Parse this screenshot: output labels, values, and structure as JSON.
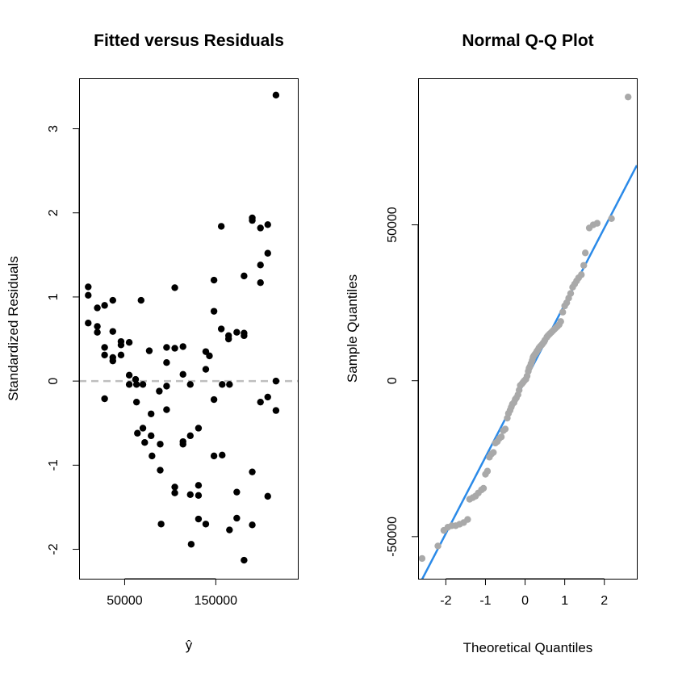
{
  "chart_data": [
    {
      "type": "scatter",
      "title": "Fitted versus Residuals",
      "xlabel": "ŷ",
      "ylabel": "Standardized Residuals",
      "xlim": [
        0,
        240000
      ],
      "ylim": [
        -2.35,
        3.6
      ],
      "xticks": [
        50000,
        150000
      ],
      "xtick_labels": [
        "50000",
        "150000"
      ],
      "yticks": [
        -2,
        -1,
        0,
        1,
        2,
        3
      ],
      "ytick_labels": [
        "-2",
        "-1",
        "0",
        "1",
        "2",
        "3"
      ],
      "point_color": "#000000",
      "reference_line": {
        "y": 0,
        "style": "dashed",
        "color": "#bebebe"
      },
      "grid": false,
      "series": [
        {
          "points": [
            [
              10000,
              1.12
            ],
            [
              10000,
              1.02
            ],
            [
              10000,
              0.69
            ],
            [
              20000,
              0.87
            ],
            [
              20000,
              0.65
            ],
            [
              20000,
              0.58
            ],
            [
              28000,
              0.9
            ],
            [
              28000,
              0.4
            ],
            [
              28000,
              0.31
            ],
            [
              28000,
              -0.21
            ],
            [
              37000,
              0.96
            ],
            [
              37000,
              0.59
            ],
            [
              37000,
              0.28
            ],
            [
              37000,
              0.24
            ],
            [
              46000,
              0.47
            ],
            [
              46000,
              0.43
            ],
            [
              46000,
              0.31
            ],
            [
              55000,
              0.46
            ],
            [
              55000,
              0.07
            ],
            [
              55000,
              -0.04
            ],
            [
              62000,
              0.02
            ],
            [
              63000,
              -0.04
            ],
            [
              63000,
              -0.25
            ],
            [
              64000,
              -0.62
            ],
            [
              68000,
              0.96
            ],
            [
              70000,
              -0.04
            ],
            [
              70000,
              -0.56
            ],
            [
              72000,
              -0.73
            ],
            [
              77000,
              0.36
            ],
            [
              79000,
              -0.39
            ],
            [
              79000,
              -0.65
            ],
            [
              80000,
              -0.89
            ],
            [
              88000,
              -0.12
            ],
            [
              89000,
              -0.75
            ],
            [
              89000,
              -1.06
            ],
            [
              90000,
              -1.7
            ],
            [
              96000,
              0.4
            ],
            [
              96000,
              0.22
            ],
            [
              96000,
              -0.06
            ],
            [
              96000,
              -0.34
            ],
            [
              105000,
              1.11
            ],
            [
              105000,
              0.39
            ],
            [
              105000,
              -1.26
            ],
            [
              105000,
              -1.33
            ],
            [
              114000,
              0.41
            ],
            [
              114000,
              0.08
            ],
            [
              114000,
              -0.72
            ],
            [
              114000,
              -0.75
            ],
            [
              122000,
              -0.04
            ],
            [
              122000,
              -0.65
            ],
            [
              122000,
              -1.35
            ],
            [
              123000,
              -1.94
            ],
            [
              131000,
              -0.56
            ],
            [
              131000,
              -1.24
            ],
            [
              131000,
              -1.36
            ],
            [
              131000,
              -1.64
            ],
            [
              139000,
              0.35
            ],
            [
              139000,
              0.14
            ],
            [
              139000,
              -1.7
            ],
            [
              143000,
              0.3
            ],
            [
              148000,
              1.2
            ],
            [
              148000,
              0.83
            ],
            [
              148000,
              -0.22
            ],
            [
              148000,
              -0.89
            ],
            [
              156000,
              1.84
            ],
            [
              156000,
              0.62
            ],
            [
              157000,
              -0.04
            ],
            [
              157000,
              -0.88
            ],
            [
              164000,
              0.54
            ],
            [
              164000,
              0.5
            ],
            [
              165000,
              -0.04
            ],
            [
              165000,
              -1.77
            ],
            [
              173000,
              0.58
            ],
            [
              173000,
              -1.32
            ],
            [
              173000,
              -1.63
            ],
            [
              181000,
              1.25
            ],
            [
              181000,
              0.57
            ],
            [
              181000,
              0.54
            ],
            [
              181000,
              -2.13
            ],
            [
              190000,
              1.94
            ],
            [
              190000,
              1.91
            ],
            [
              190000,
              -1.08
            ],
            [
              190000,
              -1.71
            ],
            [
              199000,
              1.82
            ],
            [
              199000,
              1.38
            ],
            [
              199000,
              1.17
            ],
            [
              199000,
              -0.25
            ],
            [
              207000,
              1.86
            ],
            [
              207000,
              1.52
            ],
            [
              207000,
              -0.19
            ],
            [
              207000,
              -1.37
            ],
            [
              216000,
              3.4
            ],
            [
              216000,
              0.0
            ],
            [
              216000,
              -0.35
            ]
          ]
        }
      ]
    },
    {
      "type": "scatter",
      "title": "Normal Q-Q Plot",
      "xlabel": "Theoretical Quantiles",
      "ylabel": "Sample Quantiles",
      "xlim": [
        -2.7,
        2.82
      ],
      "ylim": [
        -63500,
        97000
      ],
      "xticks": [
        -2,
        -1,
        0,
        1,
        2
      ],
      "xtick_labels": [
        "-2",
        "-1",
        "0",
        "1",
        "2"
      ],
      "yticks": [
        -50000,
        0,
        50000
      ],
      "ytick_labels": [
        "-50000",
        "0",
        "50000"
      ],
      "point_color": "#a9a9a9",
      "reference_line": {
        "type": "abline",
        "intercept": 0,
        "slope": 24500,
        "color": "#2b8ae8"
      },
      "grid": false,
      "series": [
        {
          "points": [
            [
              -2.6,
              -57000
            ],
            [
              -2.2,
              -53000
            ],
            [
              -2.05,
              -48000
            ],
            [
              -1.95,
              -47000
            ],
            [
              -1.85,
              -46500
            ],
            [
              -1.75,
              -46500
            ],
            [
              -1.65,
              -46000
            ],
            [
              -1.55,
              -45500
            ],
            [
              -1.45,
              -44500
            ],
            [
              -1.4,
              -38000
            ],
            [
              -1.32,
              -37500
            ],
            [
              -1.25,
              -37000
            ],
            [
              -1.18,
              -36000
            ],
            [
              -1.1,
              -35000
            ],
            [
              -1.05,
              -34500
            ],
            [
              -1.0,
              -30000
            ],
            [
              -0.95,
              -29000
            ],
            [
              -0.9,
              -24500
            ],
            [
              -0.85,
              -23500
            ],
            [
              -0.8,
              -23000
            ],
            [
              -0.75,
              -20000
            ],
            [
              -0.7,
              -19500
            ],
            [
              -0.65,
              -18500
            ],
            [
              -0.6,
              -18000
            ],
            [
              -0.55,
              -16000
            ],
            [
              -0.5,
              -15500
            ],
            [
              -0.45,
              -12000
            ],
            [
              -0.42,
              -10500
            ],
            [
              -0.38,
              -9500
            ],
            [
              -0.35,
              -8500
            ],
            [
              -0.32,
              -7500
            ],
            [
              -0.28,
              -7000
            ],
            [
              -0.25,
              -6000
            ],
            [
              -0.22,
              -5500
            ],
            [
              -0.18,
              -4500
            ],
            [
              -0.15,
              -3000
            ],
            [
              -0.12,
              -1500
            ],
            [
              -0.08,
              -1000
            ],
            [
              -0.05,
              -500
            ],
            [
              -0.02,
              0
            ],
            [
              0.02,
              500
            ],
            [
              0.05,
              1500
            ],
            [
              0.08,
              3000
            ],
            [
              0.1,
              4000
            ],
            [
              0.12,
              4500
            ],
            [
              0.15,
              5500
            ],
            [
              0.18,
              6500
            ],
            [
              0.2,
              7500
            ],
            [
              0.22,
              8000
            ],
            [
              0.25,
              8500
            ],
            [
              0.28,
              9000
            ],
            [
              0.3,
              9500
            ],
            [
              0.33,
              10000
            ],
            [
              0.35,
              10500
            ],
            [
              0.38,
              11000
            ],
            [
              0.42,
              11500
            ],
            [
              0.45,
              12000
            ],
            [
              0.48,
              12500
            ],
            [
              0.5,
              13000
            ],
            [
              0.55,
              14000
            ],
            [
              0.58,
              14500
            ],
            [
              0.62,
              15000
            ],
            [
              0.66,
              15500
            ],
            [
              0.7,
              16000
            ],
            [
              0.74,
              16500
            ],
            [
              0.78,
              17000
            ],
            [
              0.82,
              17500
            ],
            [
              0.86,
              18000
            ],
            [
              0.9,
              19000
            ],
            [
              0.95,
              22000
            ],
            [
              1.0,
              24000
            ],
            [
              1.05,
              25000
            ],
            [
              1.1,
              26500
            ],
            [
              1.15,
              28000
            ],
            [
              1.2,
              30000
            ],
            [
              1.25,
              31000
            ],
            [
              1.3,
              32000
            ],
            [
              1.35,
              33000
            ],
            [
              1.42,
              34000
            ],
            [
              1.48,
              37000
            ],
            [
              1.52,
              41000
            ],
            [
              1.62,
              49000
            ],
            [
              1.72,
              50000
            ],
            [
              1.82,
              50500
            ],
            [
              2.18,
              52000
            ],
            [
              2.6,
              91000
            ]
          ]
        }
      ]
    }
  ]
}
